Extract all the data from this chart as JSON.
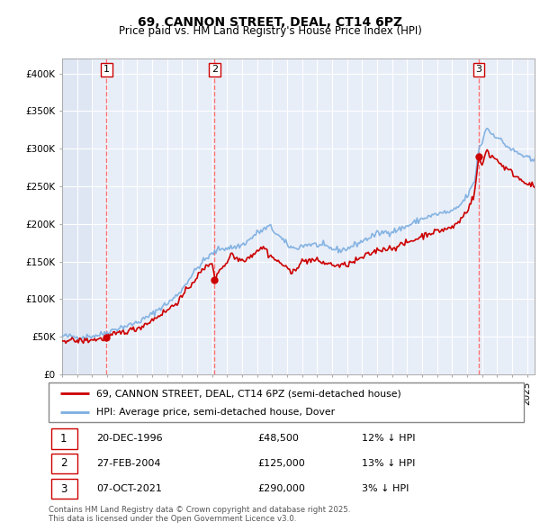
{
  "title": "69, CANNON STREET, DEAL, CT14 6PZ",
  "subtitle": "Price paid vs. HM Land Registry's House Price Index (HPI)",
  "legend_red": "69, CANNON STREET, DEAL, CT14 6PZ (semi-detached house)",
  "legend_blue": "HPI: Average price, semi-detached house, Dover",
  "transactions": [
    {
      "num": 1,
      "date": "20-DEC-1996",
      "price": 48500,
      "hpi_diff": "12% ↓ HPI",
      "x_year": 1996.96
    },
    {
      "num": 2,
      "date": "27-FEB-2004",
      "price": 125000,
      "hpi_diff": "13% ↓ HPI",
      "x_year": 2004.16
    },
    {
      "num": 3,
      "date": "07-OCT-2021",
      "price": 290000,
      "hpi_diff": "3% ↓ HPI",
      "x_year": 2021.77
    }
  ],
  "footnote1": "Contains HM Land Registry data © Crown copyright and database right 2025.",
  "footnote2": "This data is licensed under the Open Government Licence v3.0.",
  "ylim": [
    0,
    420000
  ],
  "xlim_start": 1994.0,
  "xlim_end": 2025.5,
  "red_color": "#cc0000",
  "blue_color": "#7aade0",
  "vline_color": "#ff6666",
  "background_color": "#e8eef8",
  "hatch_color": "#d0d8ee"
}
